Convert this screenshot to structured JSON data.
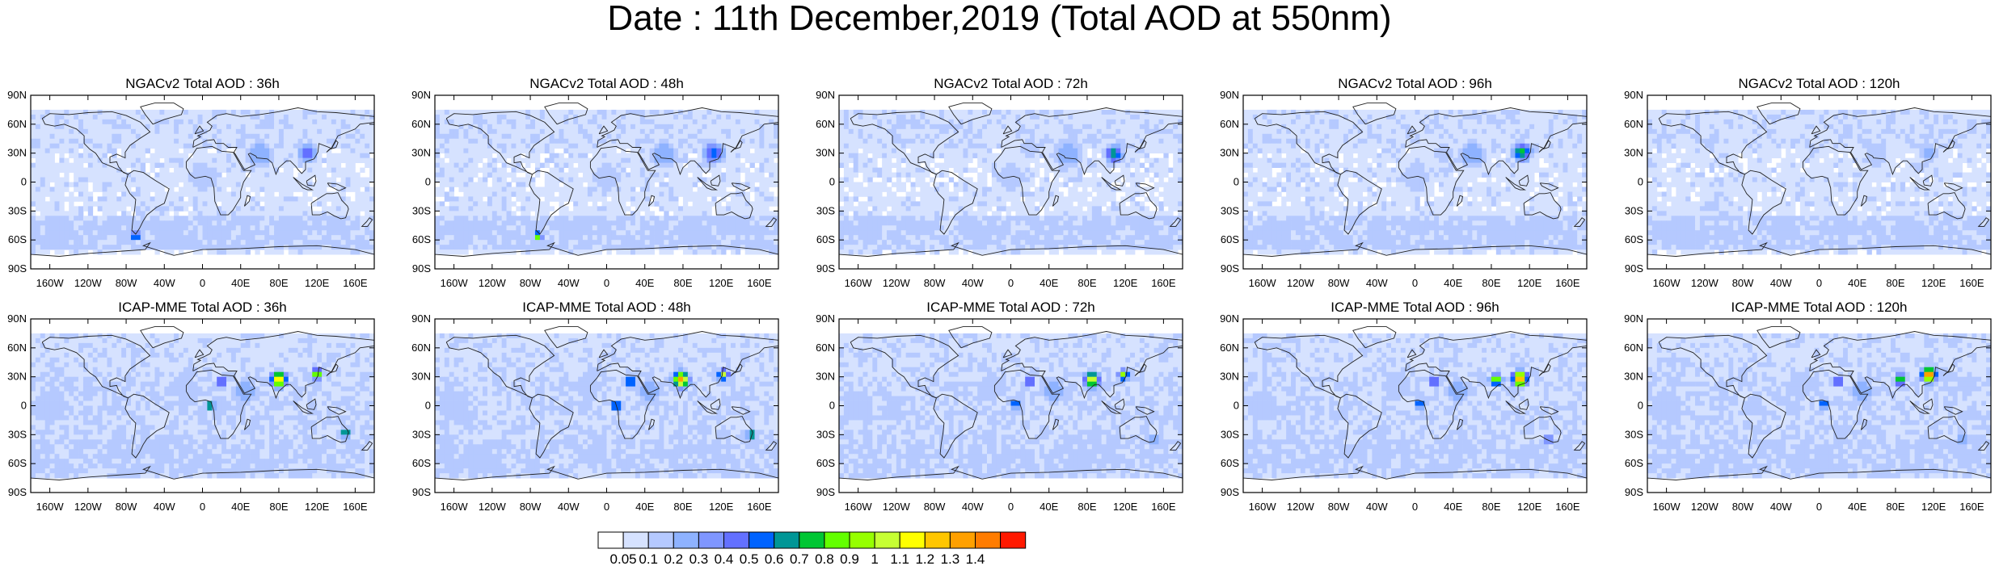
{
  "title": "Date : 11th December,2019 (Total AOD at 550nm)",
  "rows": [
    {
      "model": "NGACv2",
      "panels": [
        "NGACv2 Total AOD : 36h",
        "NGACv2 Total AOD : 48h",
        "NGACv2 Total AOD : 72h",
        "NGACv2 Total AOD : 96h",
        "NGACv2 Total AOD : 120h"
      ]
    },
    {
      "model": "ICAP-MME",
      "panels": [
        "ICAP-MME Total AOD : 36h",
        "ICAP-MME Total AOD : 48h",
        "ICAP-MME Total AOD : 72h",
        "ICAP-MME Total AOD : 96h",
        "ICAP-MME Total AOD : 120h"
      ]
    }
  ],
  "lat_ticks": [
    "90N",
    "60N",
    "30N",
    "0",
    "30S",
    "60S",
    "90S"
  ],
  "lon_ticks": [
    "160W",
    "120W",
    "80W",
    "40W",
    "0",
    "40E",
    "80E",
    "120E",
    "160E"
  ],
  "lon_tick_values": [
    -160,
    -120,
    -80,
    -40,
    0,
    40,
    80,
    120,
    160
  ],
  "lat_tick_values": [
    90,
    60,
    30,
    0,
    -30,
    -60,
    -90
  ],
  "colorbar": {
    "labels": [
      "0.05",
      "0.1",
      "0.2",
      "0.3",
      "0.4",
      "0.5",
      "0.6",
      "0.7",
      "0.8",
      "0.9",
      "1",
      "1.1",
      "1.2",
      "1.3",
      "1.4"
    ],
    "colors": [
      "#ffffff",
      "#d6e2ff",
      "#b5c9ff",
      "#8eb2ff",
      "#7f96ff",
      "#6370ff",
      "#0063ff",
      "#009696",
      "#00c633",
      "#63ff00",
      "#96ff00",
      "#c6ff33",
      "#ffff00",
      "#ffc600",
      "#ffa000",
      "#ff7c00",
      "#ff1900"
    ]
  }
}
